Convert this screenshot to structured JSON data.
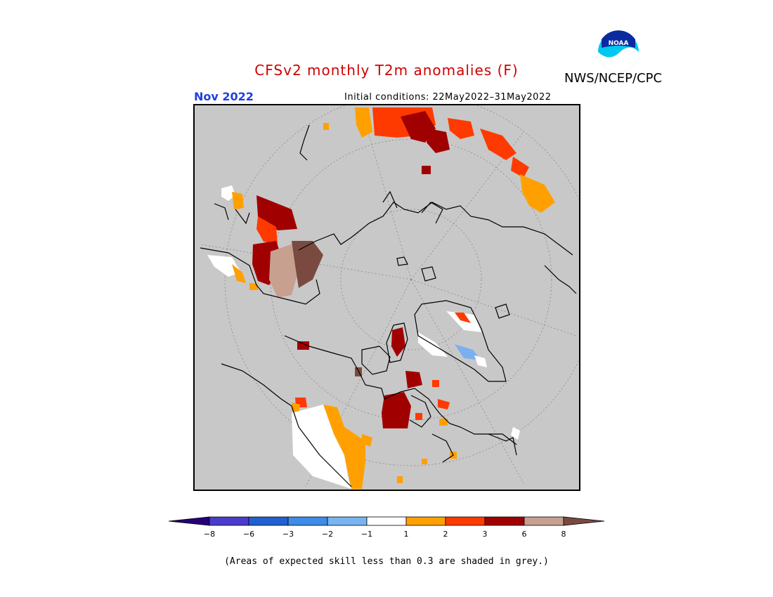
{
  "title": "CFSv2 monthly T2m anomalies (F)",
  "month": "Nov 2022",
  "initial_conditions": "Initial conditions: 22May2022–31May2022",
  "agency": "NWS/NCEP/CPC",
  "logo_text": "NOAA",
  "footnote": "(Areas of expected skill less than 0.3 are shaded in grey.)",
  "colors": {
    "title": "#d00000",
    "month": "#2040e0",
    "grey_mask": "#c8c8c8",
    "coast": "#000000",
    "white": "#ffffff",
    "orange": "#ffa000",
    "redorange": "#ff3a00",
    "darkred": "#a00000",
    "pink": "#c8a090",
    "brown": "#7a4a40",
    "lightblue": "#7ab0f0"
  },
  "colorbar": {
    "labels": [
      "−8",
      "−6",
      "−3",
      "−2",
      "−1",
      "1",
      "2",
      "3",
      "6",
      "8"
    ],
    "colors": [
      "#24007a",
      "#4a3ccc",
      "#2060d0",
      "#3c8ce8",
      "#78b4f0",
      "#ffffff",
      "#ffa000",
      "#ff3a00",
      "#a00000",
      "#c8a090",
      "#7a4a40"
    ]
  }
}
